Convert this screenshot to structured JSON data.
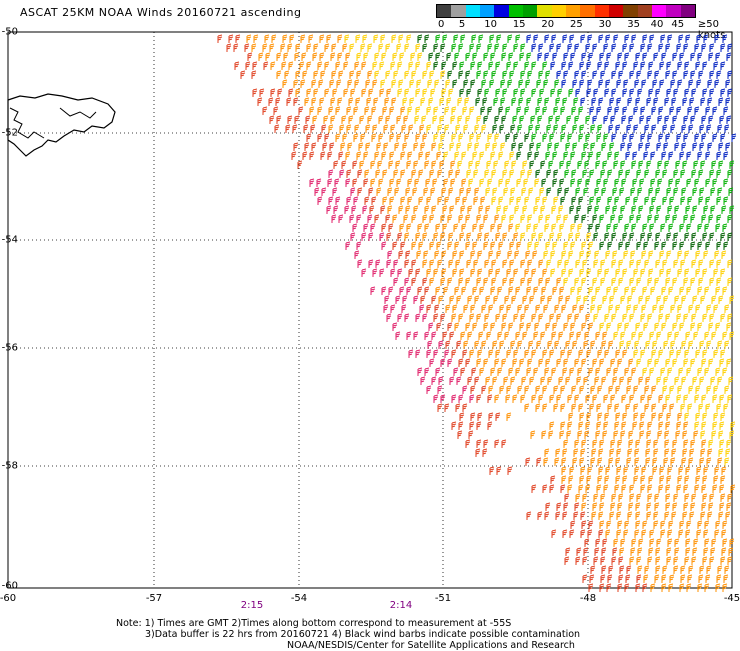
{
  "title": "ASCAT 25KM NOAA Winds 20160721 ascending",
  "legend": {
    "labels": [
      "0",
      "5",
      "10",
      "15",
      "20",
      "25",
      "30",
      "35",
      "40",
      "45",
      "≥50 knots"
    ],
    "colors": [
      "#404040",
      "#a0a0a0",
      "#00e0ff",
      "#00a0ff",
      "#0000e0",
      "#00c000",
      "#00a000",
      "#e0e000",
      "#ffd000",
      "#ffa000",
      "#ff7000",
      "#ff3000",
      "#d00000",
      "#804000",
      "#a04020",
      "#ff00ff",
      "#c000c0",
      "#800080"
    ]
  },
  "y_axis": {
    "ticks": [
      "-50",
      "-52",
      "-54",
      "-56",
      "-58",
      "-60"
    ]
  },
  "x_axis": {
    "ticks": [
      "-60",
      "-57",
      "-54",
      "-51",
      "-48",
      "-45"
    ]
  },
  "times": [
    "2:15",
    "2:14"
  ],
  "notes": {
    "line1": "Note: 1) Times are GMT 2)Times along bottom correspond to measurement at -55S",
    "line2": "3)Data buffer is 22 hrs from 20160721 4) Black wind barbs indicate possible contamination",
    "line3": "NOAA/NESDIS/Center for Satellite Applications and Research"
  },
  "colors": {
    "band_magenta": "#e0206a",
    "band_red": "#e04020",
    "band_orange": "#ff9000",
    "band_yellow": "#ffd000",
    "band_green": "#00b000",
    "band_darkgreen": "#006000",
    "band_blue": "#0020c0"
  }
}
